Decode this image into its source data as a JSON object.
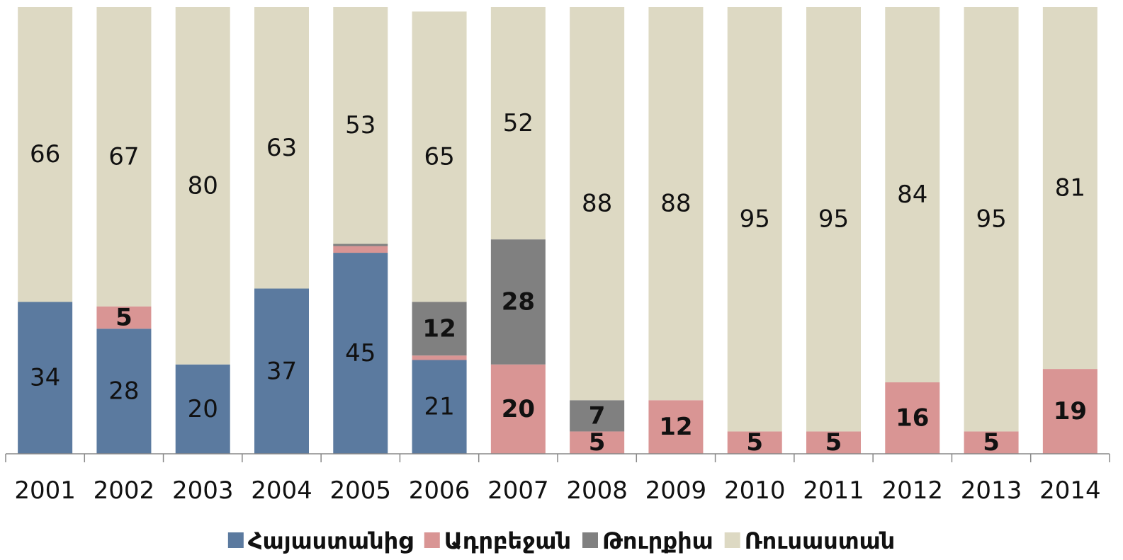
{
  "chart_data": {
    "type": "stacked_bar_100",
    "categories": [
      "2001",
      "2002",
      "2003",
      "2004",
      "2005",
      "2006",
      "2007",
      "2008",
      "2009",
      "2010",
      "2011",
      "2012",
      "2013",
      "2014"
    ],
    "ylim": [
      0,
      100
    ],
    "series": [
      {
        "name": "Հայաստանից",
        "color": "#5b7a9f",
        "values": [
          34,
          28,
          20,
          37,
          45,
          21,
          null,
          null,
          null,
          null,
          null,
          null,
          null,
          null
        ],
        "value_labels": [
          "34",
          "28",
          "20",
          "37",
          "45",
          "21",
          null,
          null,
          null,
          null,
          null,
          null,
          null,
          null
        ]
      },
      {
        "name": "Ադրբեջան",
        "color": "#d99594",
        "values": [
          null,
          5,
          null,
          null,
          1.5,
          1,
          20,
          5,
          12,
          5,
          5,
          16,
          5,
          19
        ],
        "value_labels": [
          null,
          "5",
          null,
          null,
          null,
          null,
          "20",
          "5",
          "12",
          "5",
          "5",
          "16",
          "5",
          "19"
        ]
      },
      {
        "name": "Թուրքիա",
        "color": "#808080",
        "values": [
          null,
          null,
          null,
          null,
          0.5,
          12,
          28,
          7,
          null,
          null,
          null,
          null,
          null,
          null
        ],
        "value_labels": [
          null,
          null,
          null,
          null,
          null,
          "12",
          "28",
          "7",
          null,
          null,
          null,
          null,
          null,
          null
        ]
      },
      {
        "name": "Ռուսաստան",
        "color": "#ddd9c3",
        "values": [
          66,
          67,
          80,
          63,
          53,
          65,
          52,
          88,
          88,
          95,
          95,
          84,
          95,
          81
        ],
        "value_labels": [
          "66",
          "67",
          "80",
          "63",
          "53",
          "65",
          "52",
          "88",
          "88",
          "95",
          "95",
          "84",
          "95",
          "81"
        ]
      }
    ]
  }
}
